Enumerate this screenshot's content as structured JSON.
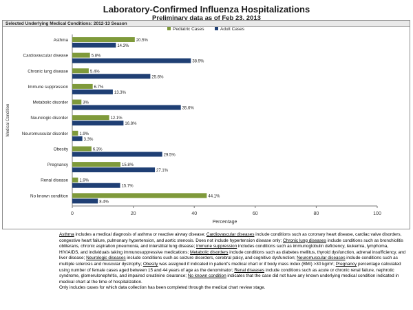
{
  "title": "Laboratory-Confirmed Influenza Hospitalizations",
  "subtitle": "Preliminary data as of Feb 23, 2013",
  "panel_header": "Selected Underlying Medical Conditions: 2012-13 Season",
  "colors": {
    "pediatric": "#7f9a3b",
    "adult": "#1f3f74"
  },
  "chart_data": {
    "type": "bar",
    "orientation": "horizontal",
    "categories": [
      "Asthma",
      "Cardiovascular disease",
      "Chronic lung disease",
      "Immune suppression",
      "Metabolic disorder",
      "Neurologic disorder",
      "Neuromuscular disorder",
      "Obesity",
      "Pregnancy",
      "Renal disease",
      "No known condition"
    ],
    "series": [
      {
        "name": "Pediatric Cases",
        "values": [
          20.5,
          5.8,
          5.4,
          6.7,
          3,
          12.1,
          1.9,
          6.3,
          15.8,
          1.9,
          44.1
        ],
        "labels": [
          "20.5%",
          "5.8%",
          "5.4%",
          "6.7%",
          "3%",
          "12.1%",
          "1.9%",
          "6.3%",
          "15.8%",
          "1.9%",
          "44.1%"
        ]
      },
      {
        "name": "Adult Cases",
        "values": [
          14.3,
          38.9,
          25.6,
          13.3,
          35.6,
          16.8,
          3.3,
          29.5,
          27.1,
          15.7,
          8.4
        ],
        "labels": [
          "14.3%",
          "38.9%",
          "25.6%",
          "13.3%",
          "35.6%",
          "16.8%",
          "3.3%",
          "29.5%",
          "27.1%",
          "15.7%",
          "8.4%"
        ]
      }
    ],
    "xlabel": "Percentage",
    "ylabel": "Medical Condition",
    "xlim": [
      0,
      100
    ],
    "xticks": [
      "0",
      "20",
      "40",
      "60",
      "80",
      "100"
    ],
    "legend_position": "top-right",
    "grid": false
  },
  "footnotes": [
    {
      "term": "Asthma",
      "text": " includes a medical diagnosis of asthma or reactive airway disease; "
    },
    {
      "term": "Cardiovascular diseases",
      "text": " include conditions such as coronary heart disease, cardiac valve disorders, congestive heart failure, pulmonary hypertension, and aortic stenosis.  Does not include hypertension disease only; "
    },
    {
      "term": "Chronic lung diseases",
      "text": " include conditions such as bronchiolitis obliterans, chronic aspiration pneumonia, and interstitial lung disease; "
    },
    {
      "term": "Immune suppression",
      "text": " includes conditions such as immunoglobulin deficiency, leukemia, lymphoma, HIV/AIDS, and individuals taking immunosuppressive medications; "
    },
    {
      "term": "Metabolic disorders",
      "text": " include conditions such as diabetes mellitus, thyroid dysfunction, adrenal insufficiency, and liver disease; "
    },
    {
      "term": "Neurologic diseases",
      "text": " include conditions such as seizure disorders, cerebral palsy, and cognitive dysfunction; "
    },
    {
      "term": "Neuromuscular diseases",
      "text": " include conditions such as multiple sclerosis and muscular dystrophy; "
    },
    {
      "term": "Obesity",
      "text": " was assigned if indicated in patient's medical chart or if body mass index (BMI) >30 kg/m²; "
    },
    {
      "term": "Pregnancy",
      "text": " percentage calculated using number of female cases aged between 15 and 44 years of age as the denominator; "
    },
    {
      "term": "Renal diseases",
      "text": " include conditions such as acute or chronic renal failure, nephrotic syndrome, glomerulonephritis, and impaired creatinine clearance; "
    },
    {
      "term": "No known condition",
      "text": " indicates that the case did not have any known underlying medical condition indicated in medical chart at the time of hospitalization."
    }
  ],
  "footnote_tail": "Only includes cases for which data collection has been completed through the medical chart review stage."
}
